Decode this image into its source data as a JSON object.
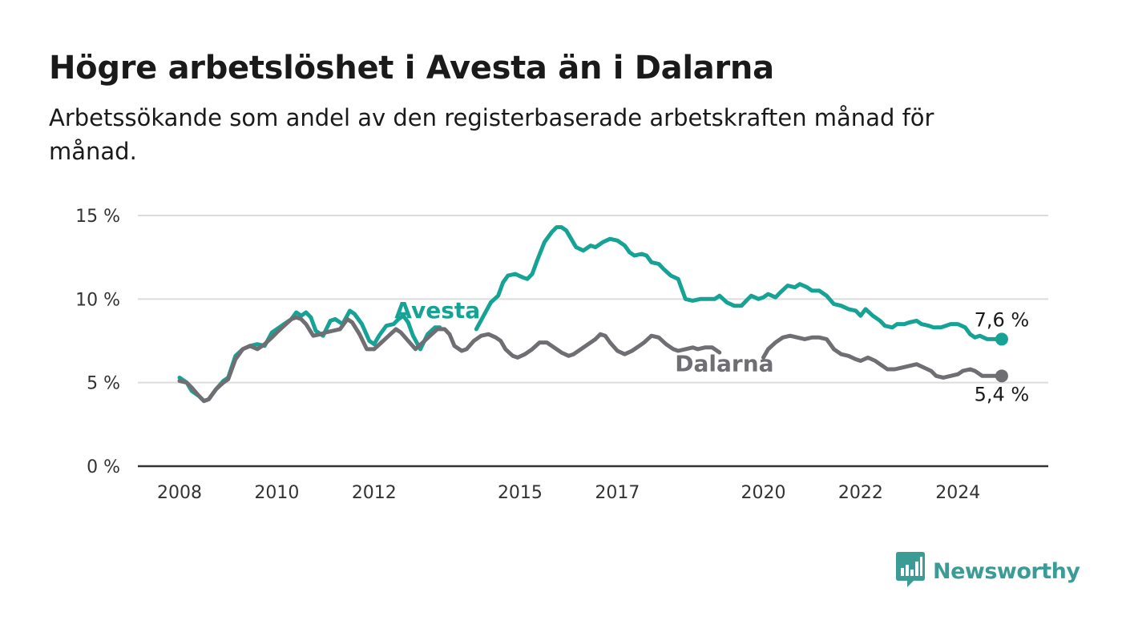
{
  "header": {
    "title": "Högre arbetslöshet i Avesta än i Dalarna",
    "subtitle": "Arbetssökande som andel av den registerbaserade arbetskraften månad för månad."
  },
  "brand": {
    "name": "Newsworthy",
    "color": "#3b9c96",
    "icon": "newsworthy-logo-icon"
  },
  "chart_data": {
    "type": "line",
    "title": "Högre arbetslöshet i Avesta än i Dalarna",
    "subtitle": "Arbetssökande som andel av den registerbaserade arbetskraften månad för månad.",
    "xlim": [
      2008,
      2025
    ],
    "ylim": [
      0,
      15
    ],
    "x_ticks": [
      2008,
      2010,
      2012,
      2015,
      2017,
      2020,
      2022,
      2024
    ],
    "y_ticks": [
      {
        "value": 0,
        "label": "0 %"
      },
      {
        "value": 5,
        "label": "5 %"
      },
      {
        "value": 10,
        "label": "10 %"
      },
      {
        "value": 15,
        "label": "15 %"
      }
    ],
    "grid": true,
    "series": [
      {
        "name": "Avesta",
        "color": "#16a295",
        "label_at": [
          2013.3,
          9.3
        ],
        "end_label": "7,6 %",
        "points": [
          [
            2008.0,
            5.3
          ],
          [
            2008.15,
            5.0
          ],
          [
            2008.25,
            4.5
          ],
          [
            2008.4,
            4.2
          ],
          [
            2008.5,
            3.9
          ],
          [
            2008.6,
            4.0
          ],
          [
            2008.75,
            4.6
          ],
          [
            2008.9,
            5.1
          ],
          [
            2009.0,
            5.3
          ],
          [
            2009.15,
            6.6
          ],
          [
            2009.3,
            7.0
          ],
          [
            2009.45,
            7.2
          ],
          [
            2009.6,
            7.3
          ],
          [
            2009.75,
            7.2
          ],
          [
            2009.9,
            8.0
          ],
          [
            2010.0,
            8.2
          ],
          [
            2010.15,
            8.5
          ],
          [
            2010.3,
            8.8
          ],
          [
            2010.4,
            9.2
          ],
          [
            2010.5,
            9.0
          ],
          [
            2010.6,
            9.2
          ],
          [
            2010.7,
            8.9
          ],
          [
            2010.8,
            8.1
          ],
          [
            2010.95,
            7.8
          ],
          [
            2011.1,
            8.7
          ],
          [
            2011.2,
            8.8
          ],
          [
            2011.35,
            8.5
          ],
          [
            2011.5,
            9.3
          ],
          [
            2011.6,
            9.1
          ],
          [
            2011.75,
            8.5
          ],
          [
            2011.9,
            7.5
          ],
          [
            2012.0,
            7.3
          ],
          [
            2012.1,
            7.8
          ],
          [
            2012.25,
            8.4
          ],
          [
            2012.4,
            8.5
          ],
          [
            2012.5,
            8.8
          ],
          [
            2012.6,
            9.0
          ],
          [
            2012.7,
            8.6
          ],
          [
            2012.8,
            7.8
          ],
          [
            2012.95,
            7.0
          ],
          [
            2013.1,
            7.9
          ],
          [
            2013.25,
            8.3
          ],
          [
            2013.35,
            8.3
          ],
          null,
          [
            2014.1,
            8.2
          ],
          [
            2014.25,
            9.0
          ],
          [
            2014.4,
            9.8
          ],
          [
            2014.55,
            10.2
          ],
          [
            2014.65,
            11.0
          ],
          [
            2014.75,
            11.4
          ],
          [
            2014.9,
            11.5
          ],
          [
            2015.05,
            11.3
          ],
          [
            2015.15,
            11.2
          ],
          [
            2015.25,
            11.5
          ],
          [
            2015.35,
            12.3
          ],
          [
            2015.5,
            13.4
          ],
          [
            2015.65,
            14.0
          ],
          [
            2015.75,
            14.3
          ],
          [
            2015.85,
            14.3
          ],
          [
            2015.95,
            14.1
          ],
          [
            2016.05,
            13.6
          ],
          [
            2016.15,
            13.1
          ],
          [
            2016.3,
            12.9
          ],
          [
            2016.45,
            13.2
          ],
          [
            2016.55,
            13.1
          ],
          [
            2016.7,
            13.4
          ],
          [
            2016.85,
            13.6
          ],
          [
            2017.0,
            13.5
          ],
          [
            2017.15,
            13.2
          ],
          [
            2017.25,
            12.8
          ],
          [
            2017.35,
            12.6
          ],
          [
            2017.5,
            12.7
          ],
          [
            2017.6,
            12.6
          ],
          [
            2017.7,
            12.2
          ],
          [
            2017.85,
            12.1
          ],
          [
            2017.95,
            11.8
          ],
          [
            2018.1,
            11.4
          ],
          [
            2018.25,
            11.2
          ],
          [
            2018.4,
            10.0
          ],
          [
            2018.55,
            9.9
          ],
          [
            2018.7,
            10.0
          ],
          [
            2018.85,
            10.0
          ],
          [
            2019.0,
            10.0
          ],
          [
            2019.1,
            10.2
          ],
          [
            2019.25,
            9.8
          ],
          [
            2019.4,
            9.6
          ],
          [
            2019.55,
            9.6
          ],
          [
            2019.65,
            9.9
          ],
          [
            2019.75,
            10.2
          ],
          [
            2019.9,
            10.0
          ],
          [
            2020.0,
            10.1
          ],
          [
            2020.1,
            10.3
          ],
          [
            2020.25,
            10.1
          ],
          [
            2020.35,
            10.4
          ],
          [
            2020.5,
            10.8
          ],
          [
            2020.65,
            10.7
          ],
          [
            2020.75,
            10.9
          ],
          [
            2020.9,
            10.7
          ],
          [
            2021.0,
            10.5
          ],
          [
            2021.15,
            10.5
          ],
          [
            2021.3,
            10.2
          ],
          [
            2021.45,
            9.7
          ],
          [
            2021.6,
            9.6
          ],
          [
            2021.75,
            9.4
          ],
          [
            2021.9,
            9.3
          ],
          [
            2022.0,
            9.0
          ],
          [
            2022.1,
            9.4
          ],
          [
            2022.25,
            9.0
          ],
          [
            2022.4,
            8.7
          ],
          [
            2022.5,
            8.4
          ],
          [
            2022.65,
            8.3
          ],
          [
            2022.75,
            8.5
          ],
          [
            2022.9,
            8.5
          ],
          [
            2023.0,
            8.6
          ],
          [
            2023.15,
            8.7
          ],
          [
            2023.25,
            8.5
          ],
          [
            2023.4,
            8.4
          ],
          [
            2023.5,
            8.3
          ],
          [
            2023.65,
            8.3
          ],
          [
            2023.75,
            8.4
          ],
          [
            2023.85,
            8.5
          ],
          [
            2024.0,
            8.5
          ],
          [
            2024.15,
            8.3
          ],
          [
            2024.25,
            7.9
          ],
          [
            2024.35,
            7.7
          ],
          [
            2024.45,
            7.8
          ],
          [
            2024.6,
            7.6
          ],
          [
            2024.75,
            7.6
          ],
          [
            2024.9,
            7.6
          ]
        ]
      },
      {
        "name": "Dalarna",
        "color": "#6e6e73",
        "label_at": [
          2019.2,
          6.1
        ],
        "end_label": "5,4 %",
        "points": [
          [
            2008.0,
            5.1
          ],
          [
            2008.15,
            5.0
          ],
          [
            2008.25,
            4.7
          ],
          [
            2008.4,
            4.2
          ],
          [
            2008.5,
            3.9
          ],
          [
            2008.6,
            4.0
          ],
          [
            2008.75,
            4.6
          ],
          [
            2008.9,
            5.0
          ],
          [
            2009.0,
            5.2
          ],
          [
            2009.15,
            6.4
          ],
          [
            2009.3,
            7.0
          ],
          [
            2009.45,
            7.2
          ],
          [
            2009.6,
            7.0
          ],
          [
            2009.75,
            7.3
          ],
          [
            2009.9,
            7.7
          ],
          [
            2010.0,
            8.0
          ],
          [
            2010.15,
            8.4
          ],
          [
            2010.3,
            8.8
          ],
          [
            2010.4,
            8.9
          ],
          [
            2010.5,
            8.8
          ],
          [
            2010.6,
            8.5
          ],
          [
            2010.75,
            7.8
          ],
          [
            2010.9,
            7.9
          ],
          [
            2011.0,
            8.0
          ],
          [
            2011.15,
            8.1
          ],
          [
            2011.3,
            8.2
          ],
          [
            2011.45,
            8.8
          ],
          [
            2011.55,
            8.6
          ],
          [
            2011.7,
            7.9
          ],
          [
            2011.85,
            7.0
          ],
          [
            2012.0,
            7.0
          ],
          [
            2012.15,
            7.4
          ],
          [
            2012.3,
            7.8
          ],
          [
            2012.45,
            8.2
          ],
          [
            2012.55,
            8.0
          ],
          [
            2012.7,
            7.5
          ],
          [
            2012.85,
            7.0
          ],
          [
            2013.0,
            7.4
          ],
          [
            2013.15,
            7.8
          ],
          [
            2013.3,
            8.2
          ],
          [
            2013.45,
            8.2
          ],
          [
            2013.55,
            7.9
          ],
          [
            2013.65,
            7.2
          ],
          [
            2013.8,
            6.9
          ],
          [
            2013.9,
            7.0
          ],
          [
            2014.05,
            7.5
          ],
          [
            2014.2,
            7.8
          ],
          [
            2014.35,
            7.9
          ],
          [
            2014.5,
            7.7
          ],
          [
            2014.6,
            7.5
          ],
          [
            2014.7,
            7.0
          ],
          [
            2014.85,
            6.6
          ],
          [
            2014.95,
            6.5
          ],
          [
            2015.1,
            6.7
          ],
          [
            2015.25,
            7.0
          ],
          [
            2015.4,
            7.4
          ],
          [
            2015.55,
            7.4
          ],
          [
            2015.7,
            7.1
          ],
          [
            2015.85,
            6.8
          ],
          [
            2016.0,
            6.6
          ],
          [
            2016.1,
            6.7
          ],
          [
            2016.25,
            7.0
          ],
          [
            2016.4,
            7.3
          ],
          [
            2016.55,
            7.6
          ],
          [
            2016.65,
            7.9
          ],
          [
            2016.75,
            7.8
          ],
          [
            2016.85,
            7.4
          ],
          [
            2017.0,
            6.9
          ],
          [
            2017.15,
            6.7
          ],
          [
            2017.3,
            6.9
          ],
          [
            2017.45,
            7.2
          ],
          [
            2017.55,
            7.4
          ],
          [
            2017.7,
            7.8
          ],
          [
            2017.85,
            7.7
          ],
          [
            2018.0,
            7.3
          ],
          [
            2018.15,
            7.0
          ],
          [
            2018.25,
            6.9
          ],
          [
            2018.4,
            7.0
          ],
          [
            2018.55,
            7.1
          ],
          [
            2018.65,
            7.0
          ],
          [
            2018.8,
            7.1
          ],
          [
            2018.95,
            7.1
          ],
          [
            2019.1,
            6.8
          ],
          null,
          [
            2020.0,
            6.5
          ],
          [
            2020.1,
            7.0
          ],
          [
            2020.25,
            7.4
          ],
          [
            2020.4,
            7.7
          ],
          [
            2020.55,
            7.8
          ],
          [
            2020.7,
            7.7
          ],
          [
            2020.85,
            7.6
          ],
          [
            2021.0,
            7.7
          ],
          [
            2021.15,
            7.7
          ],
          [
            2021.3,
            7.6
          ],
          [
            2021.45,
            7.0
          ],
          [
            2021.6,
            6.7
          ],
          [
            2021.75,
            6.6
          ],
          [
            2021.9,
            6.4
          ],
          [
            2022.0,
            6.3
          ],
          [
            2022.15,
            6.5
          ],
          [
            2022.3,
            6.3
          ],
          [
            2022.45,
            6.0
          ],
          [
            2022.55,
            5.8
          ],
          [
            2022.7,
            5.8
          ],
          [
            2022.85,
            5.9
          ],
          [
            2023.0,
            6.0
          ],
          [
            2023.15,
            6.1
          ],
          [
            2023.3,
            5.9
          ],
          [
            2023.45,
            5.7
          ],
          [
            2023.55,
            5.4
          ],
          [
            2023.7,
            5.3
          ],
          [
            2023.85,
            5.4
          ],
          [
            2024.0,
            5.5
          ],
          [
            2024.1,
            5.7
          ],
          [
            2024.25,
            5.8
          ],
          [
            2024.35,
            5.7
          ],
          [
            2024.5,
            5.4
          ],
          [
            2024.65,
            5.4
          ],
          [
            2024.8,
            5.4
          ],
          [
            2024.9,
            5.4
          ]
        ]
      }
    ]
  }
}
